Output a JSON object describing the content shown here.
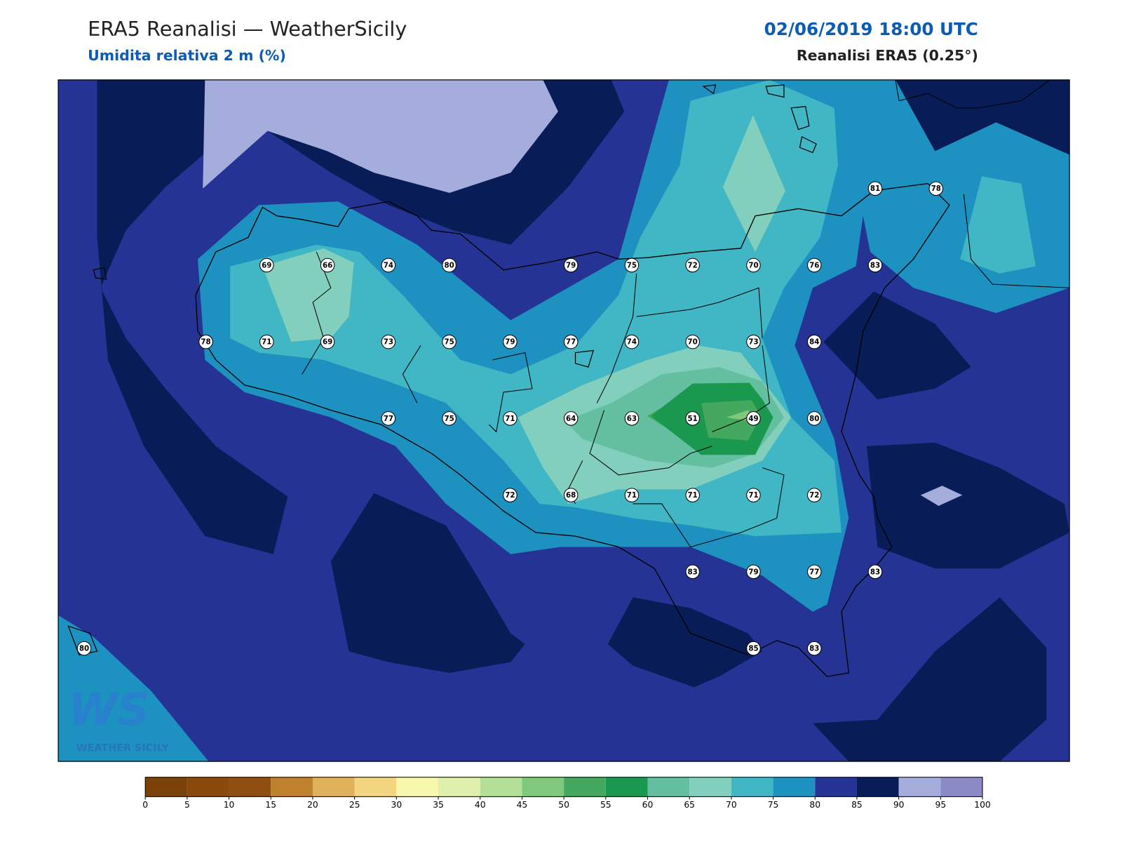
{
  "header": {
    "title": "ERA5 Reanalisi — WeatherSicily",
    "subtitle": "Umidita relativa 2 m (%)",
    "datetime": "02/06/2019 18:00 UTC",
    "source": "Reanalisi ERA5 (0.25°)"
  },
  "stations": [
    81,
    78,
    69,
    66,
    74,
    80,
    79,
    75,
    72,
    70,
    76,
    83,
    78,
    71,
    69,
    73,
    75,
    79,
    77,
    74,
    70,
    73,
    84,
    77,
    75,
    71,
    64,
    63,
    51,
    49,
    80,
    72,
    68,
    71,
    71,
    71,
    72,
    83,
    79,
    77,
    83,
    80,
    85,
    83
  ],
  "colorbar": {
    "ticks": [
      0,
      5,
      10,
      15,
      20,
      25,
      30,
      35,
      40,
      45,
      50,
      55,
      60,
      65,
      70,
      75,
      80,
      85,
      90,
      95,
      100
    ],
    "colors": [
      "#7a4209",
      "#8a4a0c",
      "#8f4f10",
      "#c0812f",
      "#e0b05b",
      "#f2d57e",
      "#f8f7ae",
      "#dff0ad",
      "#b3e096",
      "#80c97c",
      "#45a85f",
      "#1a9850",
      "#63bfa0",
      "#82cfbd",
      "#41b6c4",
      "#1d91c0",
      "#253494",
      "#081d58",
      "#a4addb",
      "#8c8ac6"
    ]
  },
  "logo": {
    "mark": "WS",
    "text": "WEATHER SICILY"
  }
}
